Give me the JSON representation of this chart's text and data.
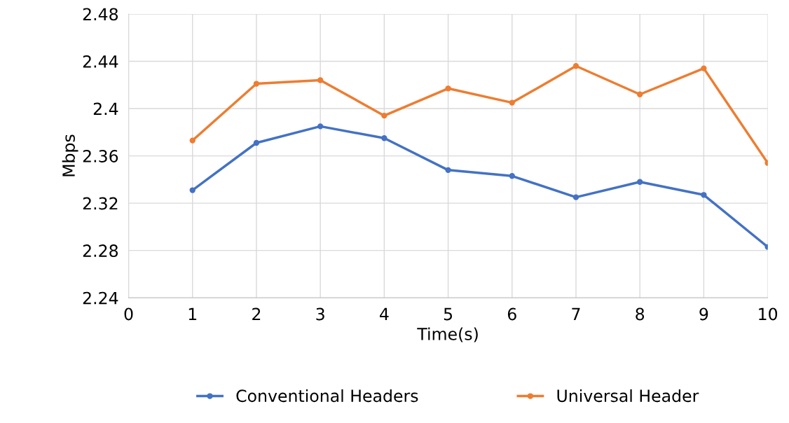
{
  "chart_data": {
    "type": "line",
    "xlabel": "Time(s)",
    "ylabel": "Mbps",
    "x": [
      1,
      2,
      3,
      4,
      5,
      6,
      7,
      8,
      9,
      10
    ],
    "series": [
      {
        "name": "Conventional Headers",
        "color": "#4472c4",
        "values": [
          2.331,
          2.371,
          2.385,
          2.375,
          2.348,
          2.343,
          2.325,
          2.338,
          2.327,
          2.283
        ]
      },
      {
        "name": "Universal Header",
        "color": "#ed7d31",
        "values": [
          2.373,
          2.421,
          2.424,
          2.394,
          2.417,
          2.405,
          2.436,
          2.412,
          2.434,
          2.354
        ]
      }
    ],
    "xlim": [
      0,
      10
    ],
    "xticks": [
      0,
      1,
      2,
      3,
      4,
      5,
      6,
      7,
      8,
      9,
      10
    ],
    "ylim": [
      2.24,
      2.48
    ],
    "yticks": [
      2.24,
      2.28,
      2.32,
      2.36,
      2.4,
      2.44,
      2.48
    ],
    "grid": true,
    "legend": "bottom",
    "marker": "circle",
    "line_style": "solid"
  }
}
